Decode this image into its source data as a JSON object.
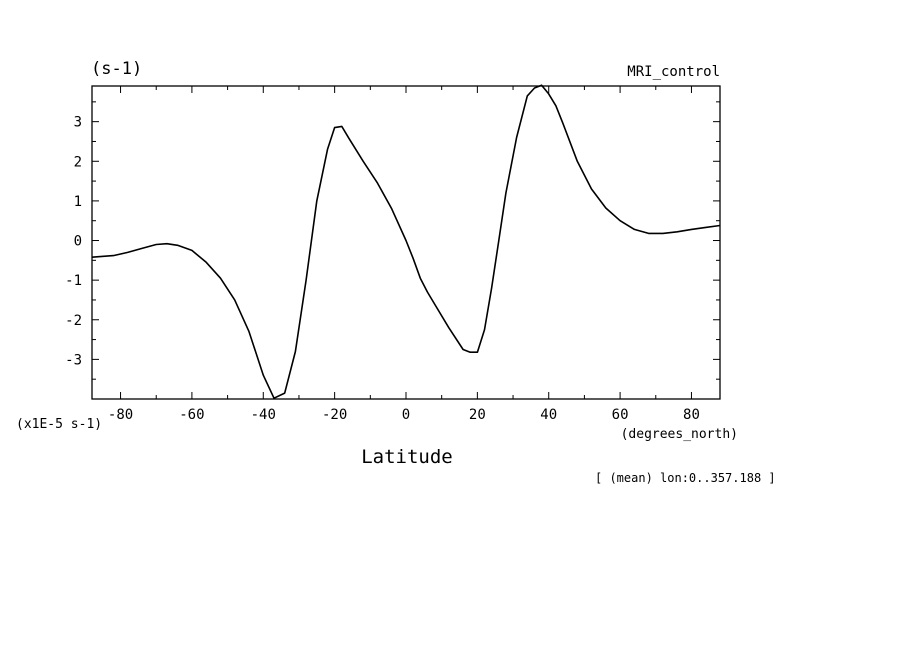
{
  "chart_data": {
    "type": "line",
    "title": "MRI_control",
    "units_label": "(s-1)",
    "scale_label": "(x1E-5 s-1)",
    "xlabel": "Latitude",
    "xunits_label": "(degrees_north)",
    "footnote": "[ (mean) lon:0..357.188 ]",
    "xlim": [
      -88,
      88
    ],
    "ylim": [
      -4,
      3.9
    ],
    "xticks": [
      -80,
      -60,
      -40,
      -20,
      0,
      20,
      40,
      60,
      80
    ],
    "xtick_labels": [
      "-80",
      "-60",
      "-40",
      "-20",
      "0",
      "20",
      "40",
      "60",
      "80"
    ],
    "yticks": [
      -3,
      -2,
      -1,
      0,
      1,
      2,
      3
    ],
    "ytick_labels": [
      "-3",
      "-2",
      "-1",
      "0",
      "1",
      "2",
      "3"
    ],
    "grid": false,
    "series": [
      {
        "color": "#000000",
        "x": [
          -88,
          -82,
          -78,
          -74,
          -70,
          -67,
          -64,
          -60,
          -56,
          -52,
          -48,
          -44,
          -40,
          -37,
          -34,
          -31,
          -28,
          -25,
          -22,
          -20,
          -18,
          -16,
          -12,
          -8,
          -4,
          0,
          2,
          4,
          6,
          8,
          12,
          16,
          18,
          20,
          22,
          24,
          26,
          28,
          31,
          34,
          36,
          38,
          40,
          42,
          44,
          48,
          52,
          56,
          60,
          64,
          68,
          72,
          76,
          80,
          84,
          88
        ],
        "y": [
          -0.42,
          -0.38,
          -0.3,
          -0.2,
          -0.1,
          -0.08,
          -0.12,
          -0.25,
          -0.55,
          -0.95,
          -1.5,
          -2.3,
          -3.4,
          -3.98,
          -3.85,
          -2.8,
          -1.0,
          1.0,
          2.3,
          2.85,
          2.88,
          2.58,
          2.0,
          1.45,
          0.8,
          0.0,
          -0.45,
          -0.95,
          -1.3,
          -1.6,
          -2.2,
          -2.75,
          -2.82,
          -2.82,
          -2.25,
          -1.2,
          0.0,
          1.2,
          2.6,
          3.65,
          3.85,
          3.92,
          3.7,
          3.4,
          2.95,
          2.0,
          1.3,
          0.82,
          0.5,
          0.28,
          0.18,
          0.18,
          0.22,
          0.28,
          0.33,
          0.38
        ]
      }
    ]
  }
}
